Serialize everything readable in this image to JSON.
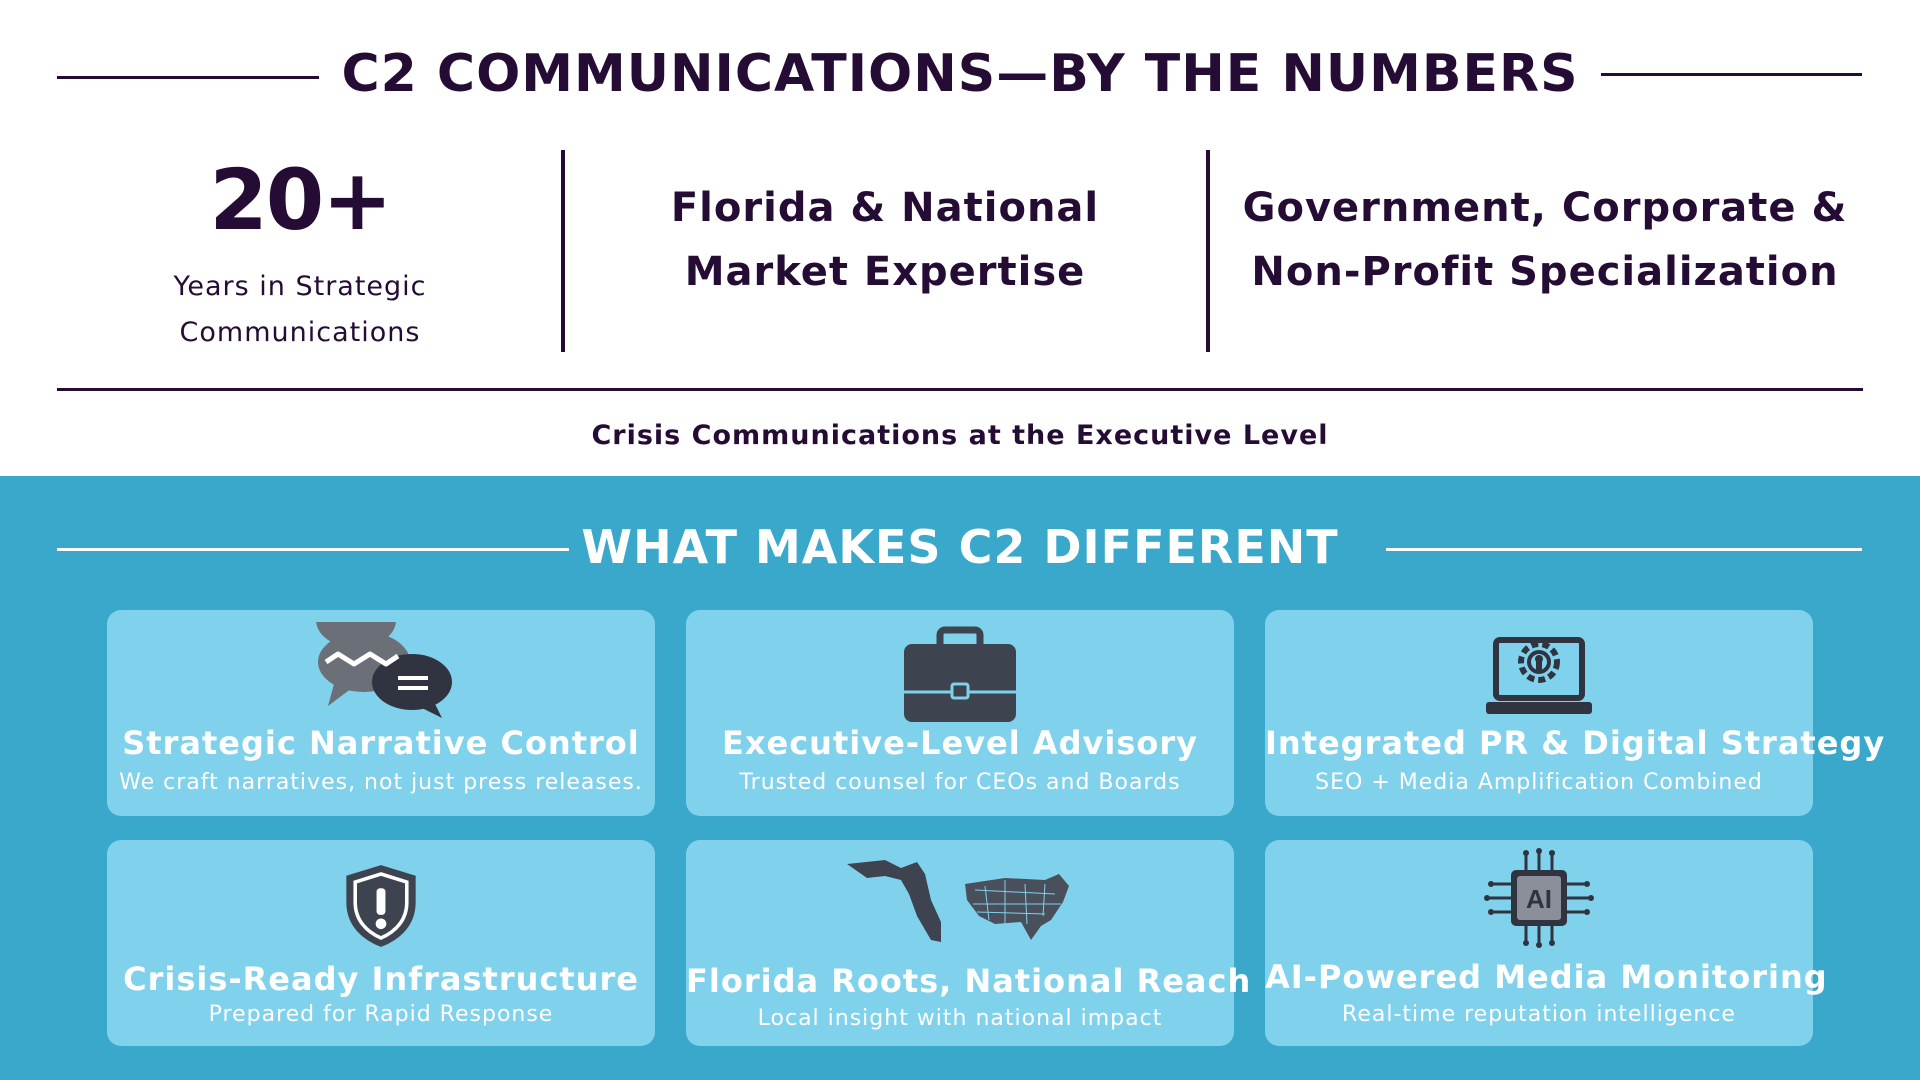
{
  "header": {
    "title": "C2 COMMUNICATIONS—BY THE NUMBERS"
  },
  "stats": [
    {
      "value": "20+",
      "label_line1": "Years in Strategic",
      "label_line2": "Communications"
    },
    {
      "line1": "Florida & National",
      "line2": "Market Expertise"
    },
    {
      "line1": "Government, Corporate &",
      "line2": "Non-Profit Specialization"
    }
  ],
  "tagline": "Crisis Communications at the Executive Level",
  "section": {
    "title": "WHAT MAKES C2 DIFFERENT"
  },
  "cards": [
    {
      "icon": "chat-bubbles-icon",
      "title": "Strategic Narrative Control",
      "subtitle": "We craft narratives, not just press releases."
    },
    {
      "icon": "briefcase-icon",
      "title": "Executive-Level Advisory",
      "subtitle": "Trusted counsel for CEOs and Boards"
    },
    {
      "icon": "laptop-gear-icon",
      "title": "Integrated PR & Digital Strategy",
      "subtitle": "SEO + Media Amplification Combined"
    },
    {
      "icon": "shield-alert-icon",
      "title": "Crisis-Ready Infrastructure",
      "subtitle": "Prepared for Rapid Response"
    },
    {
      "icon": "florida-usa-map-icon",
      "title": "Florida Roots, National Reach",
      "subtitle": "Local insight with national impact"
    },
    {
      "icon": "ai-chip-icon",
      "chip_text": "AI",
      "title": "AI-Powered Media Monitoring",
      "subtitle": "Real-time reputation intelligence"
    }
  ],
  "colors": {
    "navy": "#250c35",
    "teal_band": "#3aa8cb",
    "card_bg": "#80d1ec",
    "icon_gray": "#4a4f5c",
    "white": "#ffffff"
  }
}
